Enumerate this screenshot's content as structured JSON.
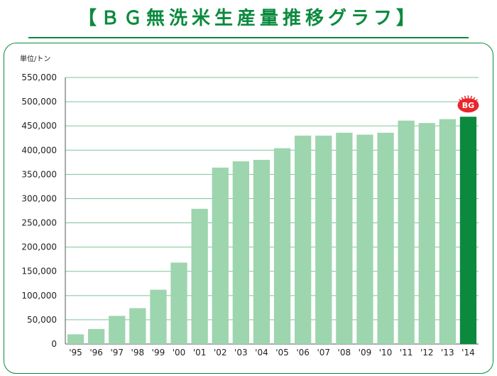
{
  "page_title": "【ＢＧ無洗米生産量推移グラフ】",
  "chart_data": {
    "type": "bar",
    "title": "【ＢＧ無洗米生産量推移グラフ】",
    "unit_label": "単位/トン",
    "xlabel": "",
    "ylabel": "",
    "ylim": [
      0,
      550000
    ],
    "yticks": [
      0,
      50000,
      100000,
      150000,
      200000,
      250000,
      300000,
      350000,
      400000,
      450000,
      500000,
      550000
    ],
    "ytick_labels": [
      "0",
      "50,000",
      "100,000",
      "150,000",
      "200,000",
      "250,000",
      "300,000",
      "350,000",
      "400,000",
      "450,000",
      "500,000",
      "550,000"
    ],
    "grid": true,
    "legend": "none",
    "categories": [
      "'95",
      "'96",
      "'97",
      "'98",
      "'99",
      "'00",
      "'01",
      "'02",
      "'03",
      "'04",
      "'05",
      "'06",
      "'07",
      "'08",
      "'09",
      "'10",
      "'11",
      "'12",
      "'13",
      "'14"
    ],
    "values": [
      20000,
      31000,
      58000,
      74000,
      112000,
      168000,
      279000,
      364000,
      377000,
      380000,
      404000,
      430000,
      430000,
      436000,
      432000,
      436000,
      461000,
      456000,
      464000,
      469000
    ],
    "highlight_index": 19,
    "badge_text": "BG",
    "colors": {
      "bar": "#9dd5ae",
      "highlight_bar": "#0b8a3e",
      "grid": "#7cc49a",
      "axis": "#555555",
      "badge": "#e8262b",
      "title": "#0b8a3e"
    }
  }
}
